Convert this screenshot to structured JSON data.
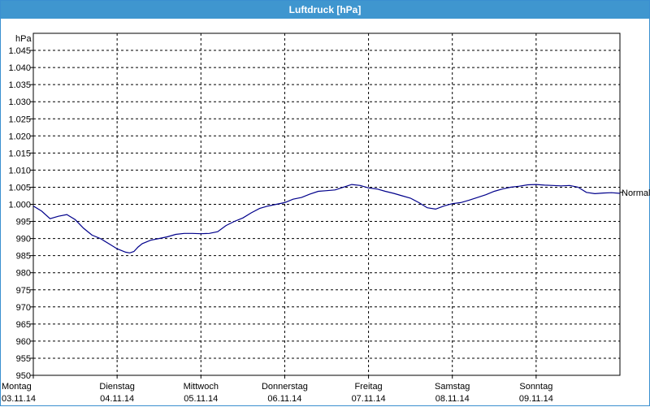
{
  "window": {
    "title": "Luftdruck [hPa]"
  },
  "chart_data": {
    "type": "line",
    "title": "Luftdruck [hPa]",
    "ylabel": "hPa",
    "ylim": [
      950,
      1050
    ],
    "y_ticks": [
      "950",
      "955",
      "960",
      "965",
      "970",
      "975",
      "980",
      "985",
      "990",
      "995",
      "1.000",
      "1.005",
      "1.010",
      "1.015",
      "1.020",
      "1.025",
      "1.030",
      "1.035",
      "1.040",
      "1.045"
    ],
    "y_tick_values": [
      950,
      955,
      960,
      965,
      970,
      975,
      980,
      985,
      990,
      995,
      1000,
      1005,
      1010,
      1015,
      1020,
      1025,
      1030,
      1035,
      1040,
      1045
    ],
    "x_range_days": [
      0,
      7
    ],
    "x_ticks": [
      {
        "day": "Montag",
        "date": "03.11.14"
      },
      {
        "day": "Dienstag",
        "date": "04.11.14"
      },
      {
        "day": "Mittwoch",
        "date": "05.11.14"
      },
      {
        "day": "Donnerstag",
        "date": "06.11.14"
      },
      {
        "day": "Freitag",
        "date": "07.11.14"
      },
      {
        "day": "Samstag",
        "date": "08.11.14"
      },
      {
        "day": "Sonntag",
        "date": "09.11.14"
      }
    ],
    "grid": true,
    "reference_label": "Normal",
    "reference_value": 1003.5,
    "line_color": "#00008b",
    "series": [
      {
        "x": [
          0,
          0.1,
          0.2,
          0.3,
          0.4,
          0.5,
          0.6,
          0.7,
          0.8,
          0.9,
          1.0,
          1.1,
          1.15,
          1.2,
          1.25,
          1.3,
          1.4,
          1.5,
          1.6,
          1.7,
          1.8,
          1.9,
          2.0,
          2.1,
          2.2,
          2.3,
          2.4,
          2.5,
          2.6,
          2.7,
          2.8,
          2.9,
          3.0,
          3.1,
          3.2,
          3.3,
          3.4,
          3.5,
          3.6,
          3.7,
          3.8,
          3.9,
          4.0,
          4.1,
          4.2,
          4.3,
          4.4,
          4.5,
          4.6,
          4.7,
          4.8,
          4.9,
          5.0,
          5.1,
          5.2,
          5.3,
          5.4,
          5.5,
          5.6,
          5.7,
          5.8,
          5.9,
          6.0,
          6.1,
          6.2,
          6.3,
          6.4,
          6.5,
          6.6,
          6.7,
          6.8,
          6.9,
          7.0
        ],
        "y": [
          999.5,
          998,
          995.8,
          996.5,
          997,
          995.5,
          993,
          991,
          990,
          988.5,
          987,
          986,
          985.8,
          986.2,
          987.5,
          988.5,
          989.5,
          990,
          990.5,
          991.2,
          991.5,
          991.5,
          991.4,
          991.5,
          992,
          993.8,
          995,
          996,
          997.5,
          998.8,
          999.5,
          1000,
          1000.5,
          1001.5,
          1002,
          1003,
          1003.8,
          1004,
          1004.2,
          1005,
          1005.8,
          1005.5,
          1004.8,
          1004.5,
          1003.8,
          1003.2,
          1002.5,
          1001.8,
          1000.5,
          999,
          998.6,
          999.5,
          1000.2,
          1000.5,
          1001.2,
          1002,
          1002.8,
          1003.8,
          1004.5,
          1005,
          1005.3,
          1005.7,
          1005.8,
          1005.6,
          1005.5,
          1005.4,
          1005.5,
          1005,
          1003.5,
          1003.1,
          1003.3,
          1003.4,
          1003.2
        ]
      }
    ]
  }
}
